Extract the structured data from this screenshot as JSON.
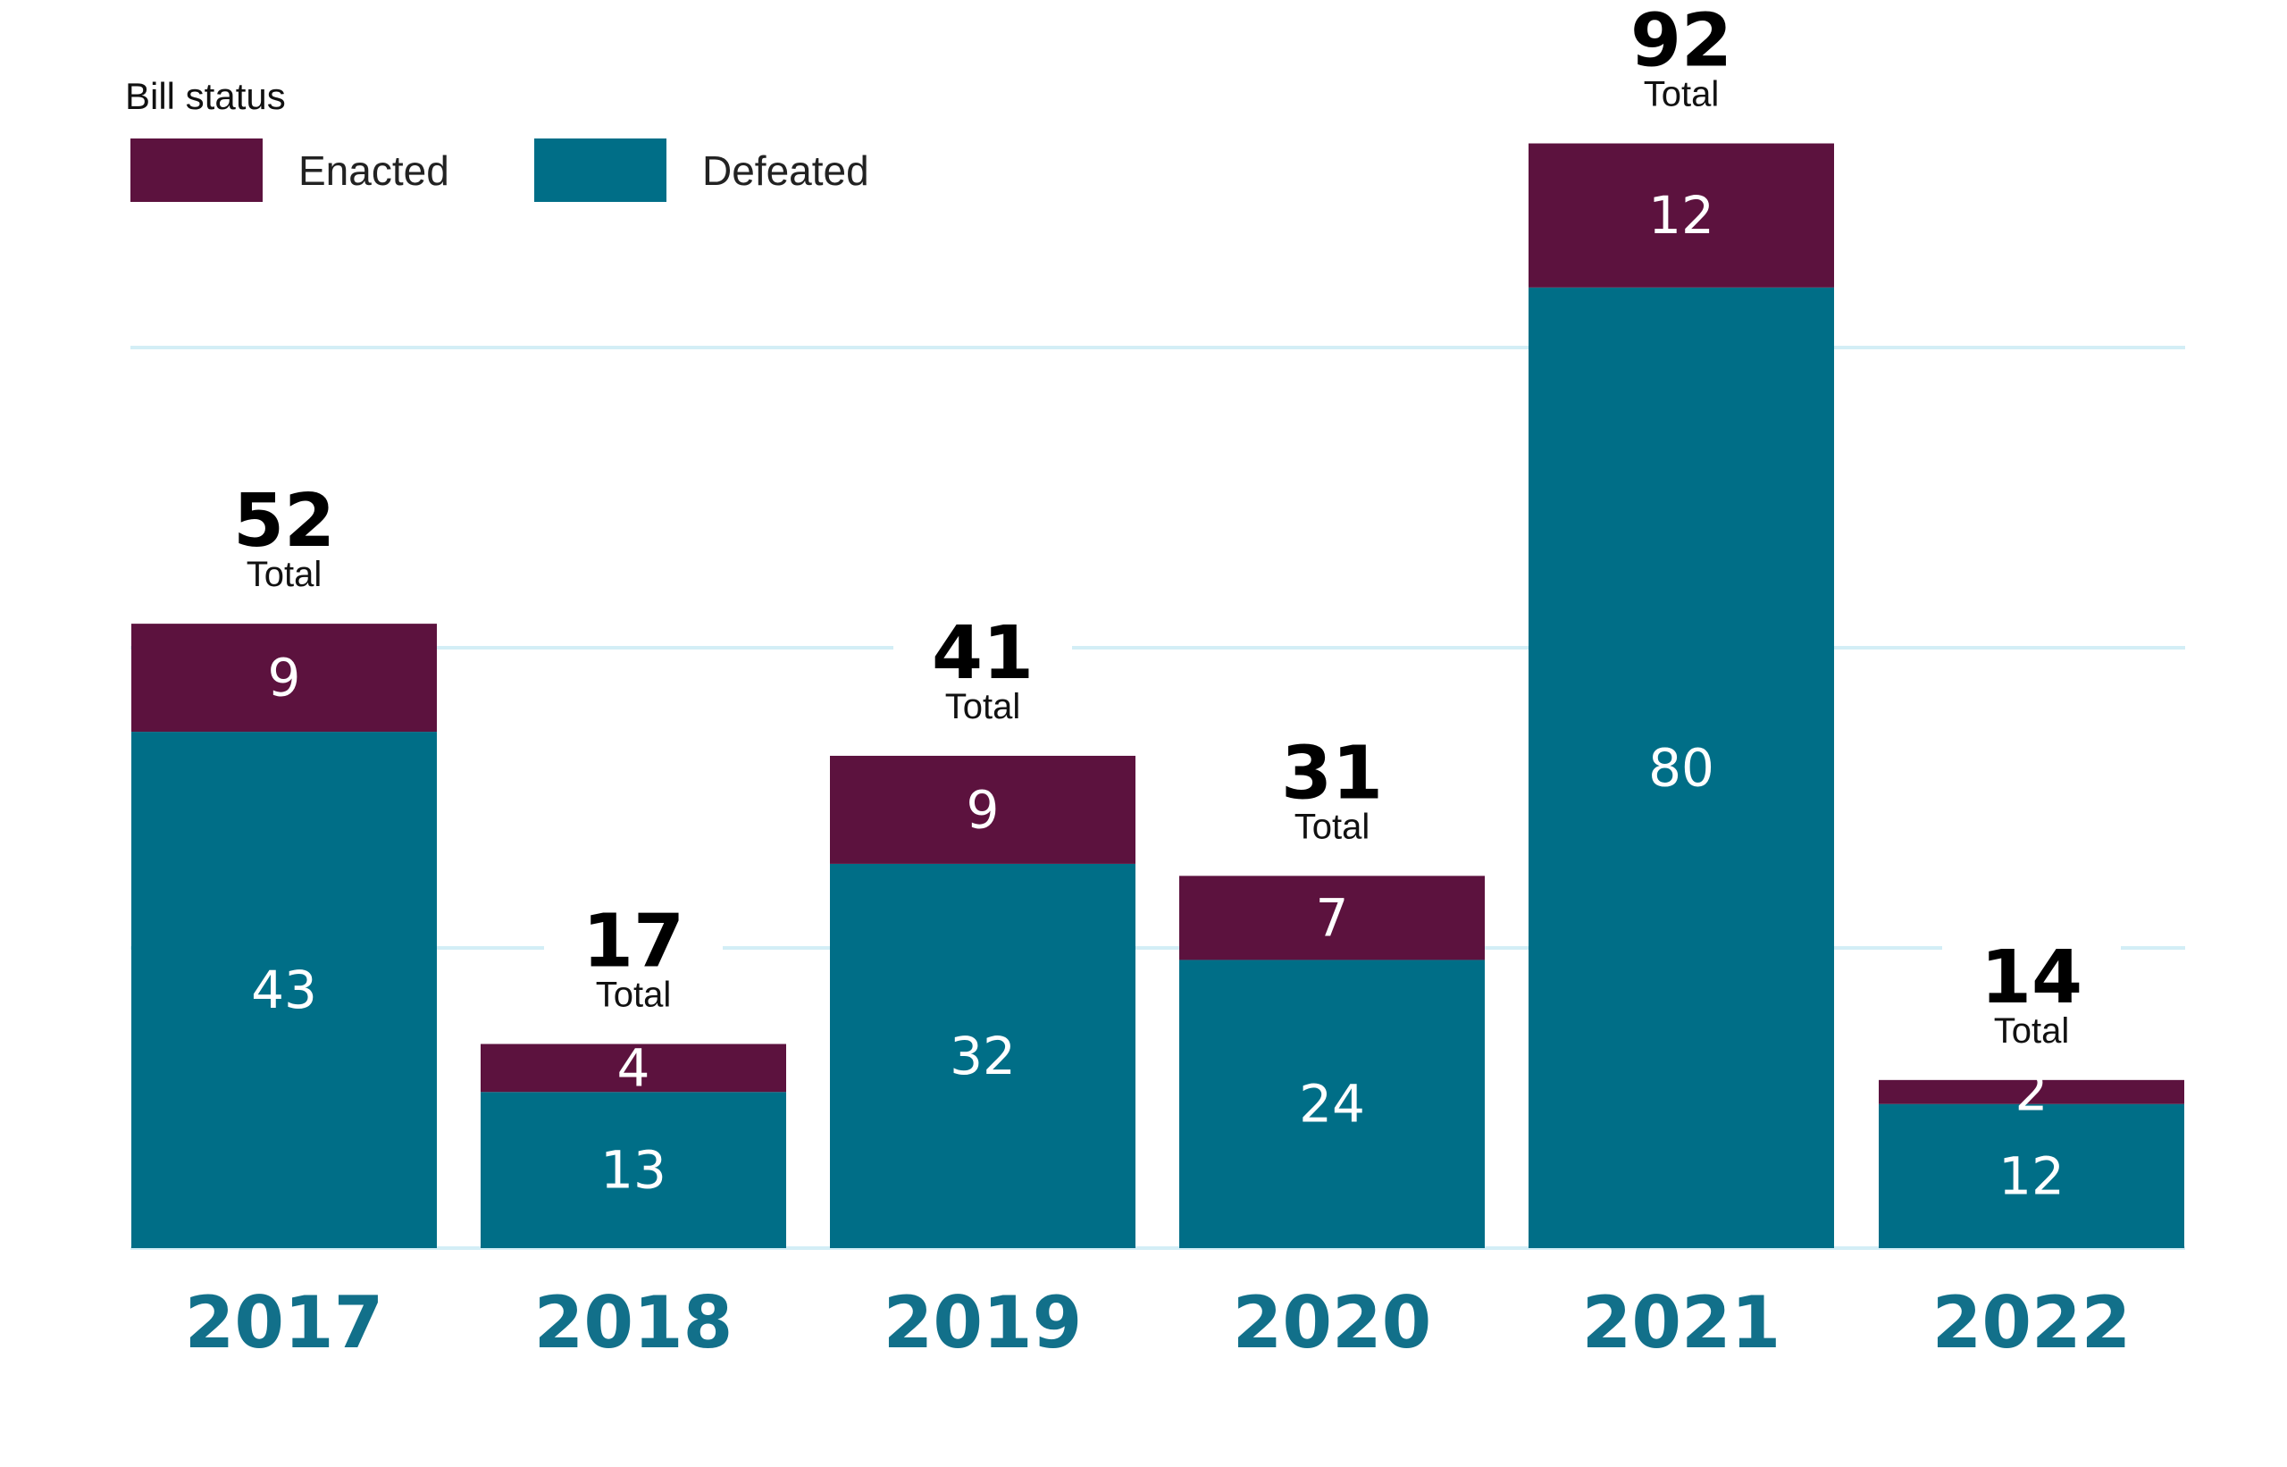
{
  "chart_data": {
    "type": "bar",
    "stacked": true,
    "title": "",
    "xlabel": "",
    "ylabel": "",
    "ylim": [
      0,
      100
    ],
    "grid": true,
    "legend": {
      "title": "Bill status",
      "placement": "top-left"
    },
    "categories": [
      "2017",
      "2018",
      "2019",
      "2020",
      "2021",
      "2022"
    ],
    "series": [
      {
        "name": "Defeated",
        "color": "#006E87",
        "values": [
          43,
          13,
          32,
          24,
          80,
          12
        ]
      },
      {
        "name": "Enacted",
        "color": "#5C123E",
        "values": [
          9,
          4,
          9,
          7,
          12,
          2
        ]
      }
    ],
    "totals": [
      52,
      17,
      41,
      31,
      92,
      14
    ],
    "total_label": "Total",
    "gridline_values": [
      25,
      50,
      75
    ],
    "colors": {
      "gridline": "#D3EEF6",
      "year_label": "#12708A"
    }
  }
}
